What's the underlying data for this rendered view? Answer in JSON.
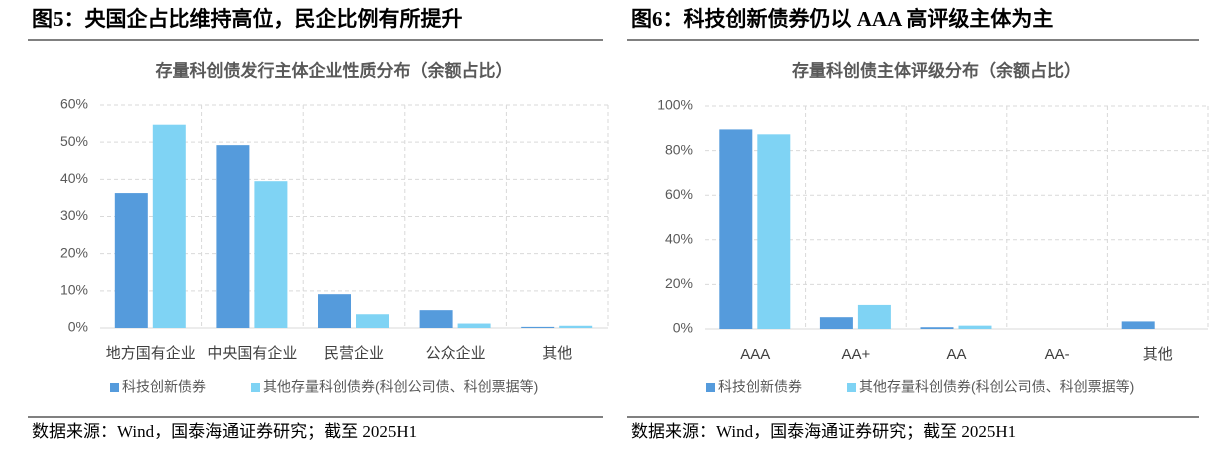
{
  "chart_data": [
    {
      "type": "bar",
      "figure_title": "图5：央国企占比维持高位，民企比例有所提升",
      "title": "存量科创债发行主体企业性质分布（余额占比）",
      "categories": [
        "地方国有企业",
        "中央国有企业",
        "民营企业",
        "公众企业",
        "其他"
      ],
      "series": [
        {
          "name": "科技创新债券",
          "color": "#559bdc",
          "values": [
            36.3,
            49.2,
            9.1,
            4.8,
            0.3
          ]
        },
        {
          "name": "其他存量科创债券(科创公司债、科创票据等)",
          "color": "#7fd3f4",
          "values": [
            54.7,
            39.5,
            3.7,
            1.2,
            0.6
          ]
        }
      ],
      "ylim": [
        0,
        60
      ],
      "yticks": [
        {
          "value": 0,
          "label": "0%"
        },
        {
          "value": 10,
          "label": "10%"
        },
        {
          "value": 20,
          "label": "20%"
        },
        {
          "value": 30,
          "label": "30%"
        },
        {
          "value": 40,
          "label": "40%"
        },
        {
          "value": 50,
          "label": "50%"
        },
        {
          "value": 60,
          "label": "60%"
        }
      ],
      "grid": true,
      "source": "数据来源：Wind，国泰海通证券研究；截至 2025H1"
    },
    {
      "type": "bar",
      "figure_title": "图6：科技创新债券仍以 AAA 高评级主体为主",
      "title": "存量科创债主体评级分布（余额占比）",
      "categories": [
        "AAA",
        "AA+",
        "AA",
        "AA-",
        "其他"
      ],
      "series": [
        {
          "name": "科技创新债券",
          "color": "#559bdc",
          "values": [
            89.5,
            5.3,
            0.8,
            0,
            3.4
          ]
        },
        {
          "name": "其他存量科创债券(科创公司债、科创票据等)",
          "color": "#7fd3f4",
          "values": [
            87.3,
            10.8,
            1.5,
            0,
            0
          ]
        }
      ],
      "ylim": [
        0,
        100
      ],
      "yticks": [
        {
          "value": 0,
          "label": "0%"
        },
        {
          "value": 20,
          "label": "20%"
        },
        {
          "value": 40,
          "label": "40%"
        },
        {
          "value": 60,
          "label": "60%"
        },
        {
          "value": 80,
          "label": "80%"
        },
        {
          "value": 100,
          "label": "100%"
        }
      ],
      "grid": true,
      "source": "数据来源：Wind，国泰海通证券研究；截至 2025H1"
    }
  ]
}
